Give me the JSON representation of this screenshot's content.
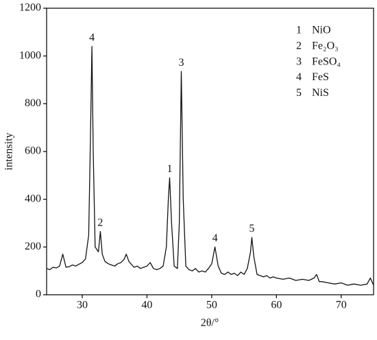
{
  "chart_data": {
    "type": "line",
    "x_label": "2θ/°",
    "y_label": "intensity",
    "xlim": [
      24.5,
      75
    ],
    "ylim": [
      0,
      1200
    ],
    "xticks": [
      30,
      40,
      50,
      60,
      70
    ],
    "yticks": [
      0,
      200,
      400,
      600,
      800,
      1000,
      1200
    ],
    "color": "#111111",
    "x": [
      24.5,
      25,
      25.5,
      26,
      26.5,
      27,
      27.5,
      28,
      28.5,
      29,
      29.5,
      30,
      30.5,
      31,
      31.3,
      31.5,
      31.7,
      32,
      32.5,
      32.8,
      33.1,
      33.5,
      34,
      34.5,
      35,
      35.5,
      36,
      36.5,
      36.8,
      37.2,
      37.5,
      38,
      38.5,
      39,
      39.5,
      40,
      40.5,
      41,
      41.5,
      42,
      42.5,
      43,
      43.3,
      43.5,
      43.8,
      44.2,
      44.7,
      45,
      45.3,
      45.6,
      46,
      46.5,
      47,
      47.5,
      48,
      48.5,
      49,
      49.5,
      50,
      50.5,
      51,
      51.5,
      52,
      52.5,
      53,
      53.5,
      54,
      54.5,
      55,
      55.5,
      56,
      56.2,
      56.5,
      57,
      57.5,
      58,
      58.5,
      59,
      59.5,
      60,
      61,
      62,
      63,
      64,
      65,
      65.8,
      66.2,
      66.6,
      67,
      68,
      69,
      70,
      71,
      72,
      73,
      74,
      74.5,
      75
    ],
    "values": [
      110,
      105,
      115,
      112,
      120,
      170,
      115,
      118,
      125,
      120,
      128,
      135,
      150,
      250,
      700,
      1040,
      600,
      200,
      180,
      265,
      170,
      140,
      130,
      125,
      120,
      130,
      135,
      150,
      170,
      140,
      130,
      115,
      120,
      110,
      115,
      120,
      135,
      110,
      105,
      110,
      120,
      200,
      400,
      490,
      300,
      120,
      110,
      300,
      935,
      400,
      120,
      105,
      100,
      110,
      95,
      100,
      95,
      110,
      130,
      200,
      120,
      90,
      85,
      95,
      85,
      90,
      80,
      95,
      85,
      110,
      180,
      240,
      160,
      85,
      80,
      75,
      80,
      70,
      75,
      70,
      65,
      70,
      60,
      65,
      60,
      70,
      85,
      55,
      55,
      50,
      45,
      50,
      40,
      45,
      40,
      45,
      70,
      40
    ],
    "annotations": [
      {
        "text": "4",
        "x": 31.5,
        "y": 1040
      },
      {
        "text": "2",
        "x": 32.8,
        "y": 265
      },
      {
        "text": "1",
        "x": 43.5,
        "y": 490
      },
      {
        "text": "3",
        "x": 45.3,
        "y": 935
      },
      {
        "text": "4",
        "x": 50.5,
        "y": 200
      },
      {
        "text": "5",
        "x": 56.2,
        "y": 240
      }
    ],
    "legend": [
      {
        "number": "1",
        "name": "NiO"
      },
      {
        "number": "2",
        "name": "Fe₂O₃"
      },
      {
        "number": "3",
        "name": "FeSO₄"
      },
      {
        "number": "4",
        "name": "FeS"
      },
      {
        "number": "5",
        "name": "NiS"
      }
    ]
  }
}
